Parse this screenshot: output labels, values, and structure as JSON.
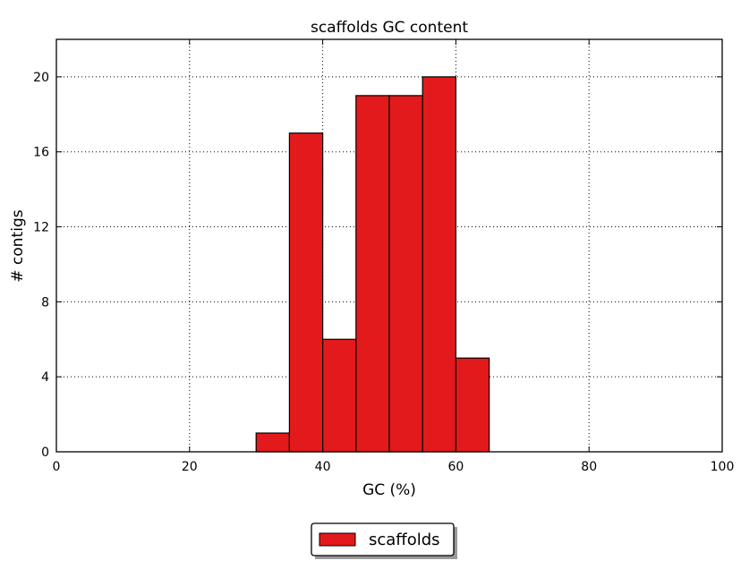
{
  "chart_data": {
    "type": "bar",
    "title": "scaffolds GC content",
    "xlabel": "GC (%)",
    "ylabel": "# contigs",
    "xlim": [
      0,
      100
    ],
    "ylim": [
      0,
      22
    ],
    "xticks": [
      0,
      20,
      40,
      60,
      80,
      100
    ],
    "yticks": [
      0,
      4,
      8,
      12,
      16,
      20
    ],
    "grid": true,
    "legend_position": "below",
    "series": [
      {
        "name": "scaffolds",
        "color": "#e31a1c",
        "bins": [
          {
            "x_start": 30,
            "x_end": 35,
            "value": 1
          },
          {
            "x_start": 35,
            "x_end": 40,
            "value": 17
          },
          {
            "x_start": 40,
            "x_end": 45,
            "value": 6
          },
          {
            "x_start": 45,
            "x_end": 50,
            "value": 19
          },
          {
            "x_start": 50,
            "x_end": 55,
            "value": 19
          },
          {
            "x_start": 55,
            "x_end": 60,
            "value": 20
          },
          {
            "x_start": 60,
            "x_end": 65,
            "value": 5
          }
        ]
      }
    ]
  }
}
